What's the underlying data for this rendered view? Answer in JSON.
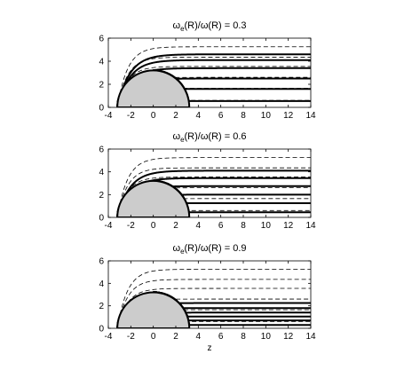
{
  "chart_data": [
    {
      "type": "line",
      "title_prefix": "ω",
      "title_sub": "e",
      "title_rest": "(R)/ω(R) = 0.3",
      "xlabel": "",
      "ylabel": "",
      "xlim": [
        -4,
        14
      ],
      "ylim": [
        0,
        6
      ],
      "xticks": [
        "-4",
        "-2",
        "0",
        "2",
        "4",
        "6",
        "8",
        "10",
        "12",
        "14"
      ],
      "yticks": [
        "0",
        "2",
        "4",
        "6"
      ],
      "sphere_radius": 3.2,
      "solid_far_values": [
        0.55,
        1.6,
        2.5,
        3.4,
        4.1,
        4.6
      ],
      "dashed_far_values": [
        0.6,
        1.65,
        2.6,
        3.55,
        4.35,
        5.25
      ],
      "grid": false
    },
    {
      "type": "line",
      "title_prefix": "ω",
      "title_sub": "e",
      "title_rest": "(R)/ω(R) = 0.6",
      "xlabel": "",
      "ylabel": "",
      "xlim": [
        -4,
        14
      ],
      "ylim": [
        0,
        6
      ],
      "xticks": [
        "-4",
        "-2",
        "0",
        "2",
        "4",
        "6",
        "8",
        "10",
        "12",
        "14"
      ],
      "yticks": [
        "0",
        "2",
        "4",
        "6"
      ],
      "sphere_radius": 3.2,
      "solid_far_values": [
        0.45,
        1.25,
        2.0,
        2.75,
        3.45,
        4.1
      ],
      "dashed_far_values": [
        0.6,
        1.65,
        2.6,
        3.55,
        4.35,
        5.25
      ],
      "grid": false
    },
    {
      "type": "line",
      "title_prefix": "ω",
      "title_sub": "e",
      "title_rest": "(R)/ω(R) = 0.9",
      "xlabel": "z",
      "ylabel": "",
      "xlim": [
        -4,
        14
      ],
      "ylim": [
        0,
        6
      ],
      "xticks": [
        "-4",
        "-2",
        "0",
        "2",
        "4",
        "6",
        "8",
        "10",
        "12",
        "14"
      ],
      "yticks": [
        "0",
        "2",
        "4",
        "6"
      ],
      "sphere_radius": 3.2,
      "solid_far_values": [
        0.3,
        0.7,
        1.05,
        1.4,
        1.8,
        2.25
      ],
      "dashed_far_values": [
        0.6,
        1.65,
        2.6,
        3.55,
        4.35,
        5.25
      ],
      "grid": false
    }
  ]
}
